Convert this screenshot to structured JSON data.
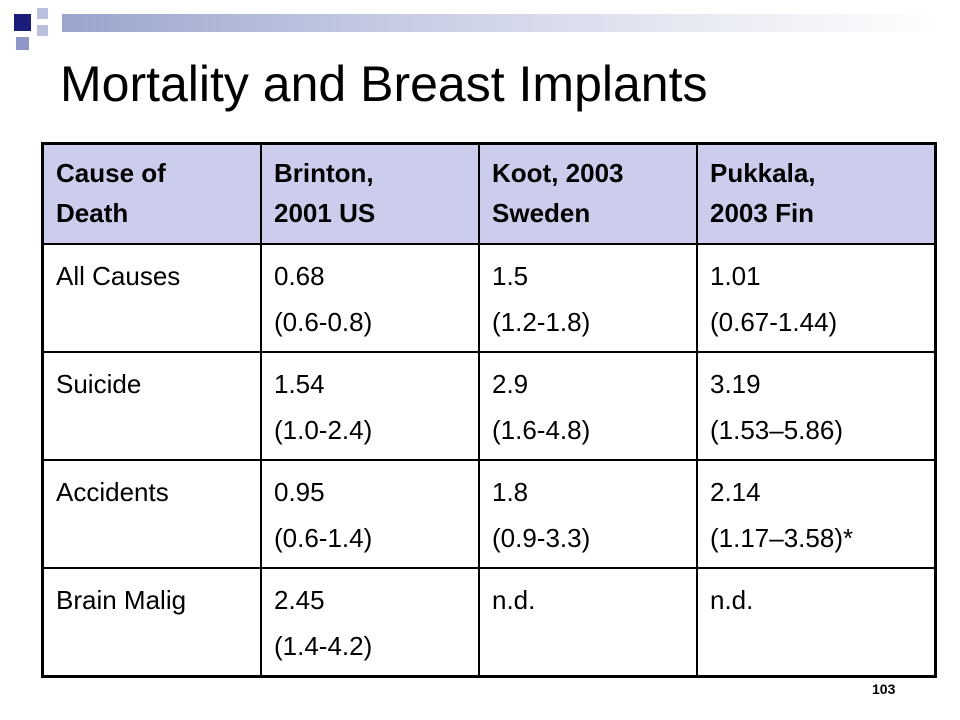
{
  "slide": {
    "title": "Mortality and Breast Implants",
    "page_number": "103",
    "accent_color": "#ccccec",
    "decoration_color": "#1c1c7a"
  },
  "table": {
    "headers": [
      [
        "Cause of",
        "Death"
      ],
      [
        "Brinton,",
        "2001 US"
      ],
      [
        "Koot, 2003",
        "Sweden"
      ],
      [
        "Pukkala,",
        "2003 Fin"
      ]
    ],
    "rows": [
      {
        "cause": "All Causes",
        "brinton": [
          "0.68",
          "(0.6-0.8)"
        ],
        "koot": [
          "1.5",
          "(1.2-1.8)"
        ],
        "pukkala": [
          "1.01",
          "(0.67-1.44)"
        ]
      },
      {
        "cause": "Suicide",
        "brinton": [
          "1.54",
          "(1.0-2.4)"
        ],
        "koot": [
          "2.9",
          "(1.6-4.8)"
        ],
        "pukkala": [
          "3.19",
          "(1.53–5.86)"
        ]
      },
      {
        "cause": "Accidents",
        "brinton": [
          "0.95",
          "(0.6-1.4)"
        ],
        "koot": [
          "1.8",
          "(0.9-3.3)"
        ],
        "pukkala": [
          "2.14",
          "(1.17–3.58)*"
        ]
      },
      {
        "cause": "Brain Malig",
        "brinton": [
          "2.45",
          "(1.4-4.2)"
        ],
        "koot": [
          "n.d."
        ],
        "pukkala": [
          "n.d."
        ]
      }
    ]
  }
}
